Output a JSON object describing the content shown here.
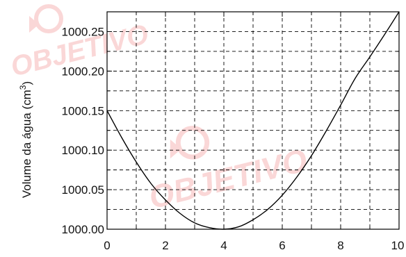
{
  "watermark": {
    "text": "OBJETIVO",
    "color": "#f6b8b8"
  },
  "chart_data": {
    "type": "line",
    "title": "",
    "xlabel": "",
    "ylabel": "Volume da água (cm",
    "ylabel_sup": "3",
    "ylabel_close": ")",
    "xlim": [
      0,
      10
    ],
    "ylim": [
      1000.0,
      1000.275
    ],
    "x_ticks": [
      0,
      2,
      4,
      6,
      8,
      10
    ],
    "x_tick_labels": [
      "0",
      "2",
      "4",
      "6",
      "8",
      "10"
    ],
    "y_ticks": [
      1000.0,
      1000.05,
      1000.1,
      1000.15,
      1000.2,
      1000.25
    ],
    "y_tick_labels": [
      "1000.00",
      "1000.05",
      "1000.10",
      "1000.15",
      "1000.20",
      "1000.25"
    ],
    "grid": true,
    "grid_style": "dashed",
    "line_color": "#000000",
    "series": [
      {
        "x": [
          0,
          0.5,
          1,
          1.5,
          2,
          2.5,
          3,
          3.5,
          4,
          4.5,
          5,
          5.5,
          6,
          6.5,
          7,
          7.5,
          8,
          8.5,
          9,
          9.5,
          10
        ],
        "y": [
          1000.15,
          1000.116,
          1000.085,
          1000.058,
          1000.037,
          1000.02,
          1000.008,
          1000.002,
          1000.0,
          1000.003,
          1000.012,
          1000.025,
          1000.043,
          1000.066,
          1000.093,
          1000.124,
          1000.157,
          1000.191,
          1000.218,
          1000.246,
          1000.275
        ]
      }
    ]
  }
}
